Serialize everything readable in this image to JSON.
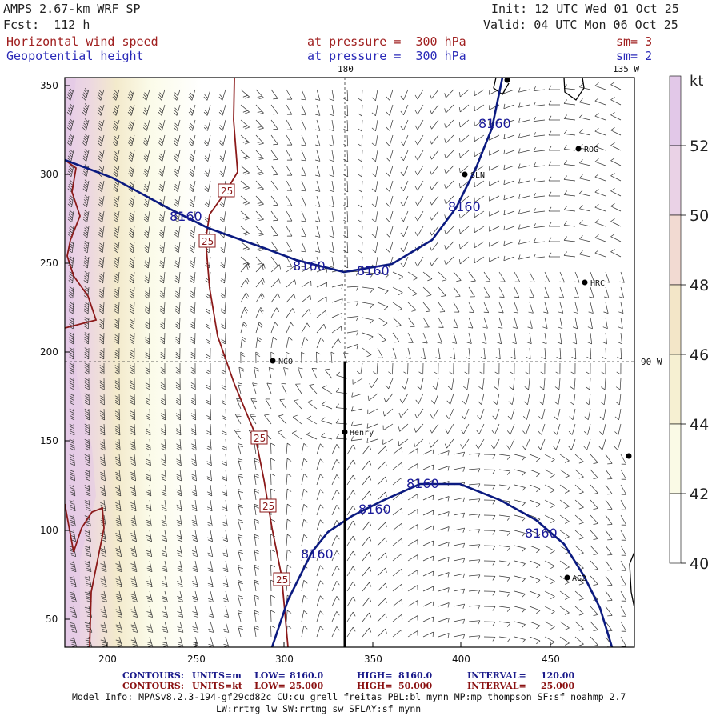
{
  "header": {
    "model": "AMPS 2.67-km WRF SP",
    "forecast": "Fcst:  112 h",
    "init": "Init: 12 UTC Wed 01 Oct 25",
    "valid": "Valid: 04 UTC Mon 06 Oct 25",
    "field1_name": "Horizontal wind speed",
    "field1_level": "at pressure =  300 hPa",
    "field1_smooth": "sm= 3",
    "field2_name": "Geopotential height",
    "field2_level": "at pressure =  300 hPa",
    "field2_smooth": "sm= 2"
  },
  "map": {
    "x_ticks": [
      "200",
      "250",
      "300",
      "350",
      "400",
      "450"
    ],
    "y_ticks": [
      "350",
      "300",
      "250",
      "200",
      "150",
      "100",
      "50"
    ],
    "meridian_labels": {
      "lon_180": "180",
      "lon_135w": "135 W",
      "lon_90w": "90 W"
    },
    "stations": [
      "NCO",
      "Henry",
      "SLN",
      "ROG",
      "HRC",
      "AG2"
    ],
    "height_contour_label": "8160",
    "wind_contour_label": "25"
  },
  "colorbar": {
    "unit": "kt",
    "labels": [
      "52",
      "50",
      "48",
      "46",
      "44",
      "42",
      "40"
    ],
    "colors": [
      "#ffffff",
      "#fafae6",
      "#f6f0d2",
      "#f3e6c8",
      "#f2dad2",
      "#ead2e6",
      "#e2c8e8"
    ]
  },
  "footer": {
    "contours_label": "CONTOURS:",
    "line1": {
      "units": "UNITS=m",
      "low_label": "LOW=",
      "low": "8160.0",
      "high_label": "HIGH=",
      "high": "8160.0",
      "interval_label": "INTERVAL=",
      "interval": "120.00"
    },
    "line2": {
      "units": "UNITS=kt",
      "low_label": "LOW=",
      "low": "25.000",
      "high_label": "HIGH=",
      "high": "50.000",
      "interval_label": "INTERVAL=",
      "interval": "25.000"
    },
    "model_info": "Model Info: MPASv8.2.3-194-gf29cd82c CU:cu_grell_freitas PBL:bl_mynn MP:mp_thompson SF:sf_noahmp 2.7",
    "model_info2": "LW:rrtmg_lw SW:rrtmg_sw SFLAY:sf_mynn"
  }
}
